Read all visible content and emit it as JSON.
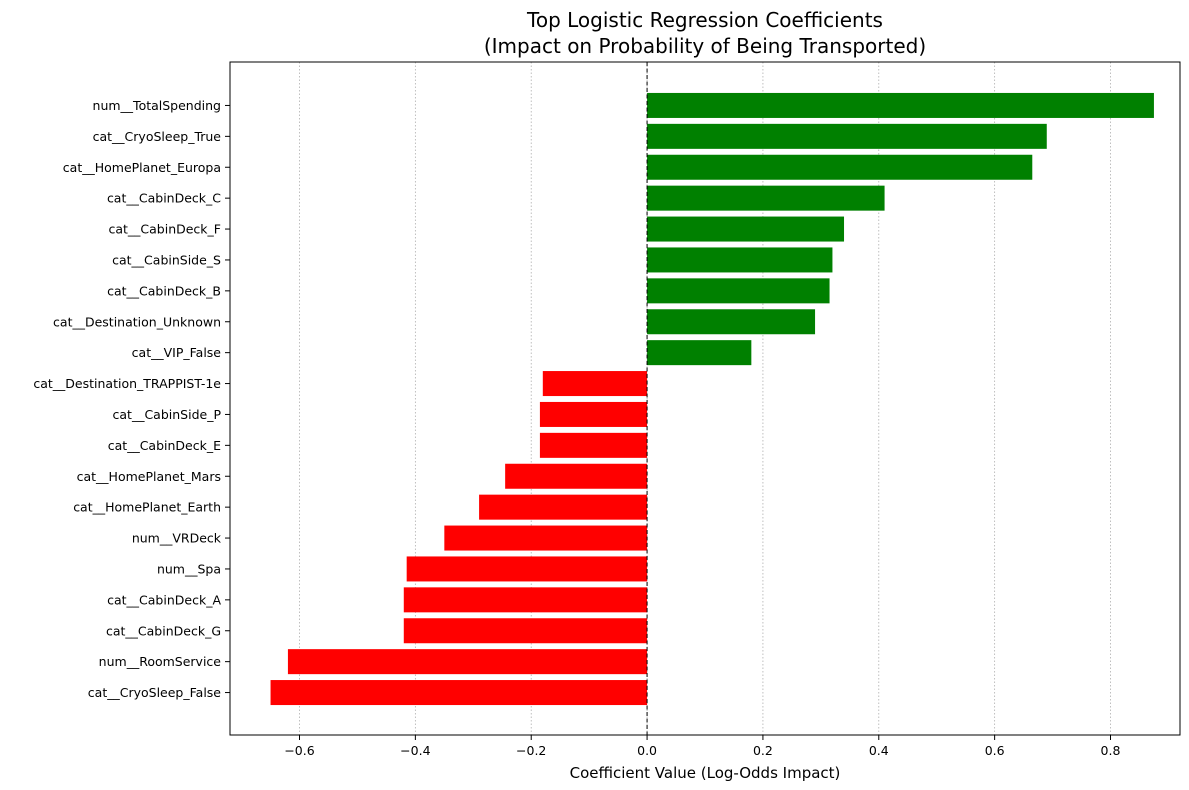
{
  "chart_data": {
    "type": "bar",
    "orientation": "horizontal",
    "title": "Top Logistic Regression Coefficients",
    "subtitle": "(Impact on Probability of Being Transported)",
    "xlabel": "Coefficient Value (Log-Odds Impact)",
    "ylabel": "",
    "xlim": [
      -0.72,
      0.92
    ],
    "xticks": [
      -0.6,
      -0.4,
      -0.2,
      0.0,
      0.2,
      0.4,
      0.6,
      0.8
    ],
    "xtick_labels": [
      "−0.6",
      "−0.4",
      "−0.2",
      "0.0",
      "0.2",
      "0.4",
      "0.6",
      "0.8"
    ],
    "grid": "x-axis dotted",
    "zero_line": "dashed black vertical at 0",
    "positive_color": "#008000",
    "negative_color": "#ff0000",
    "categories": [
      "num__TotalSpending",
      "cat__CryoSleep_True",
      "cat__HomePlanet_Europa",
      "cat__CabinDeck_C",
      "cat__CabinDeck_F",
      "cat__CabinSide_S",
      "cat__CabinDeck_B",
      "cat__Destination_Unknown",
      "cat__VIP_False",
      "cat__Destination_TRAPPIST-1e",
      "cat__CabinSide_P",
      "cat__CabinDeck_E",
      "cat__HomePlanet_Mars",
      "cat__HomePlanet_Earth",
      "num__VRDeck",
      "num__Spa",
      "cat__CabinDeck_A",
      "cat__CabinDeck_G",
      "num__RoomService",
      "cat__CryoSleep_False"
    ],
    "values": [
      0.875,
      0.69,
      0.665,
      0.41,
      0.34,
      0.32,
      0.315,
      0.29,
      0.18,
      -0.18,
      -0.185,
      -0.185,
      -0.245,
      -0.29,
      -0.35,
      -0.415,
      -0.42,
      -0.42,
      -0.62,
      -0.65
    ]
  }
}
